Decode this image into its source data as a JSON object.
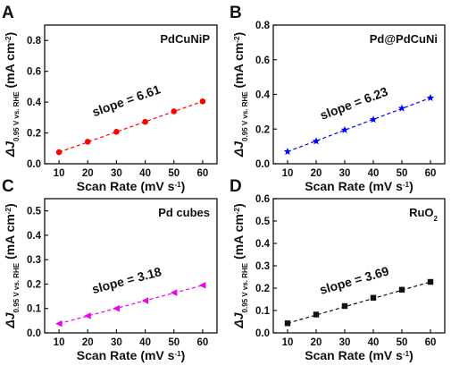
{
  "chart_data": [
    {
      "panel": "A",
      "type": "scatter",
      "label": "PdCuNiP",
      "label_sub": "",
      "x": [
        10,
        20,
        30,
        40,
        50,
        60
      ],
      "y": [
        0.075,
        0.143,
        0.207,
        0.272,
        0.34,
        0.405
      ],
      "fit_line": {
        "x": [
          10,
          60
        ],
        "y": [
          0.075,
          0.405
        ],
        "style": "dashed"
      },
      "slope_text": "slope = 6.61",
      "marker": "circle",
      "color": "#ff0000",
      "xlim": [
        5,
        65
      ],
      "ylim": [
        0,
        0.9
      ],
      "xticks": [
        10,
        20,
        30,
        40,
        50,
        60
      ],
      "yticks": [
        0.0,
        0.2,
        0.4,
        0.6,
        0.8
      ],
      "ytick_labels": [
        "0.0",
        "0.2",
        "0.4",
        "0.6",
        "0.8"
      ],
      "xlabel": "Scan Rate (mV s",
      "xlabel_sup": "-1",
      "xlabel_end": ")",
      "ylabel_delta": "ΔJ",
      "ylabel_sub": "0.95 V vs. RHE",
      "ylabel_unit": " (mA cm",
      "ylabel_sup": "-2",
      "ylabel_end": ")"
    },
    {
      "panel": "B",
      "type": "scatter",
      "label": "Pd@PdCuNi",
      "label_sub": "",
      "x": [
        10,
        20,
        30,
        40,
        50,
        60
      ],
      "y": [
        0.07,
        0.13,
        0.195,
        0.255,
        0.32,
        0.38
      ],
      "fit_line": {
        "x": [
          10,
          60
        ],
        "y": [
          0.07,
          0.38
        ],
        "style": "dashed"
      },
      "slope_text": "slope = 6.23",
      "marker": "star",
      "color": "#0000ff",
      "xlim": [
        5,
        65
      ],
      "ylim": [
        0,
        0.8
      ],
      "xticks": [
        10,
        20,
        30,
        40,
        50,
        60
      ],
      "yticks": [
        0.0,
        0.2,
        0.4,
        0.6,
        0.8
      ],
      "ytick_labels": [
        "0.0",
        "0.2",
        "0.4",
        "0.6",
        "0.8"
      ],
      "xlabel": "Scan Rate (mV s",
      "xlabel_sup": "-1",
      "xlabel_end": ")",
      "ylabel_delta": "ΔJ",
      "ylabel_sub": "0.95 V vs. RHE",
      "ylabel_unit": " (mA cm",
      "ylabel_sup": "-2",
      "ylabel_end": ")"
    },
    {
      "panel": "C",
      "type": "scatter",
      "label": "Pd cubes",
      "label_sub": "",
      "x": [
        10,
        20,
        30,
        40,
        50,
        60
      ],
      "y": [
        0.038,
        0.07,
        0.1,
        0.132,
        0.165,
        0.195
      ],
      "fit_line": {
        "x": [
          10,
          60
        ],
        "y": [
          0.038,
          0.195
        ],
        "style": "dashed"
      },
      "slope_text": "slope = 3.18",
      "marker": "triangle-left",
      "color": "#ee00ee",
      "xlim": [
        5,
        65
      ],
      "ylim": [
        0,
        0.55
      ],
      "xticks": [
        10,
        20,
        30,
        40,
        50,
        60
      ],
      "yticks": [
        0.0,
        0.1,
        0.2,
        0.3,
        0.4,
        0.5
      ],
      "ytick_labels": [
        "0.0",
        "0.1",
        "0.2",
        "0.3",
        "0.4",
        "0.5"
      ],
      "xlabel": "Scan Rate (mV s",
      "xlabel_sup": "-1",
      "xlabel_end": ")",
      "ylabel_delta": "ΔJ",
      "ylabel_sub": "0.95 V vs. RHE",
      "ylabel_unit": " (mA cm",
      "ylabel_sup": "-2",
      "ylabel_end": ")"
    },
    {
      "panel": "D",
      "type": "scatter",
      "label": "RuO",
      "label_sub": "2",
      "x": [
        10,
        20,
        30,
        40,
        50,
        60
      ],
      "y": [
        0.043,
        0.082,
        0.12,
        0.157,
        0.193,
        0.228
      ],
      "fit_line": {
        "x": [
          10,
          60
        ],
        "y": [
          0.043,
          0.228
        ],
        "style": "dashed"
      },
      "slope_text": "slope = 3.69",
      "marker": "square",
      "color": "#111111",
      "xlim": [
        5,
        65
      ],
      "ylim": [
        0,
        0.6
      ],
      "xticks": [
        10,
        20,
        30,
        40,
        50,
        60
      ],
      "yticks": [
        0.0,
        0.1,
        0.2,
        0.3,
        0.4,
        0.5,
        0.6
      ],
      "ytick_labels": [
        "0.0",
        "0.1",
        "0.2",
        "0.3",
        "0.4",
        "0.5",
        "0.6"
      ],
      "xlabel": "Scan Rate (mV s",
      "xlabel_sup": "-1",
      "xlabel_end": ")",
      "ylabel_delta": "ΔJ",
      "ylabel_sub": "0.95 V vs. RHE",
      "ylabel_unit": " (mA cm",
      "ylabel_sup": "-2",
      "ylabel_end": ")"
    }
  ]
}
